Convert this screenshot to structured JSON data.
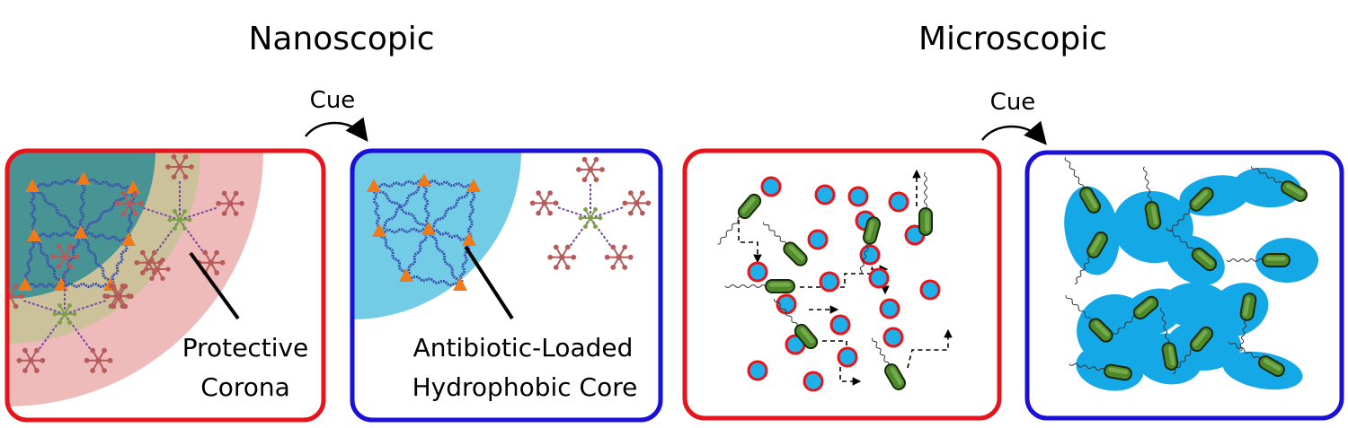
{
  "headings": {
    "nanoscopic": "Nanoscopic",
    "microscopic": "Microscopic"
  },
  "arrows": {
    "left_cue": "Cue",
    "right_cue": "Cue"
  },
  "panels": {
    "nano_before": {
      "label_line1": "Protective",
      "label_line2": "Corona",
      "border_color": "#e8141c"
    },
    "nano_after": {
      "label_line1": "Antibiotic-Loaded",
      "label_line2": "Hydrophobic Core",
      "border_color": "#1a10d8"
    },
    "micro_before": {
      "border_color": "#e8141c"
    },
    "micro_after": {
      "border_color": "#1a10d8"
    }
  },
  "colors": {
    "corona_pink": "#ecaeae",
    "core_blue": "#5bc3e2",
    "teal_overlap": "#3a8f95",
    "olive_overlap": "#c6c398",
    "polymer_blue": "#3a4fb0",
    "polymer_orange": "#f07a18",
    "star_red": "#b65a5a",
    "star_green": "#7fa04b",
    "bacterium_green": "#4f8a2a",
    "particle_cyan": "#1fb0ea",
    "particle_ring": "#e8141c",
    "aggregate_blue": "#14a9e6"
  }
}
